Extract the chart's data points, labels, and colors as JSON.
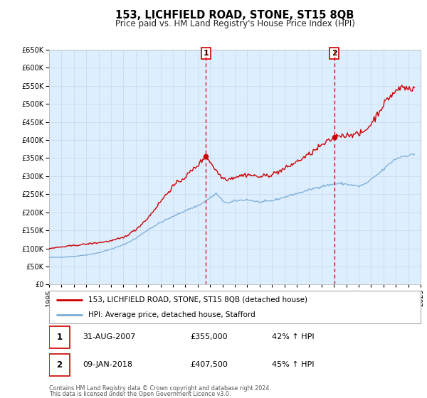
{
  "title": "153, LICHFIELD ROAD, STONE, ST15 8QB",
  "subtitle": "Price paid vs. HM Land Registry's House Price Index (HPI)",
  "legend_line1": "153, LICHFIELD ROAD, STONE, ST15 8QB (detached house)",
  "legend_line2": "HPI: Average price, detached house, Stafford",
  "footnote1": "Contains HM Land Registry data © Crown copyright and database right 2024.",
  "footnote2": "This data is licensed under the Open Government Licence v3.0.",
  "sale1_date": "31-AUG-2007",
  "sale1_price": "£355,000",
  "sale1_hpi": "42% ↑ HPI",
  "sale2_date": "09-JAN-2018",
  "sale2_price": "£407,500",
  "sale2_hpi": "45% ↑ HPI",
  "sale1_year": 2007.67,
  "sale1_value": 355000,
  "sale2_year": 2018.03,
  "sale2_value": 407500,
  "vline1_year": 2007.67,
  "vline2_year": 2018.03,
  "ylim_min": 0,
  "ylim_max": 650000,
  "xlim_min": 1995,
  "xlim_max": 2025,
  "red_color": "#cc0000",
  "blue_color": "#7aadd4",
  "bg_color": "#ddeeff",
  "plot_bg": "#ffffff",
  "grid_color": "#c8d8e8",
  "title_fontsize": 10.5,
  "subtitle_fontsize": 8.5,
  "tick_fontsize": 7.0
}
